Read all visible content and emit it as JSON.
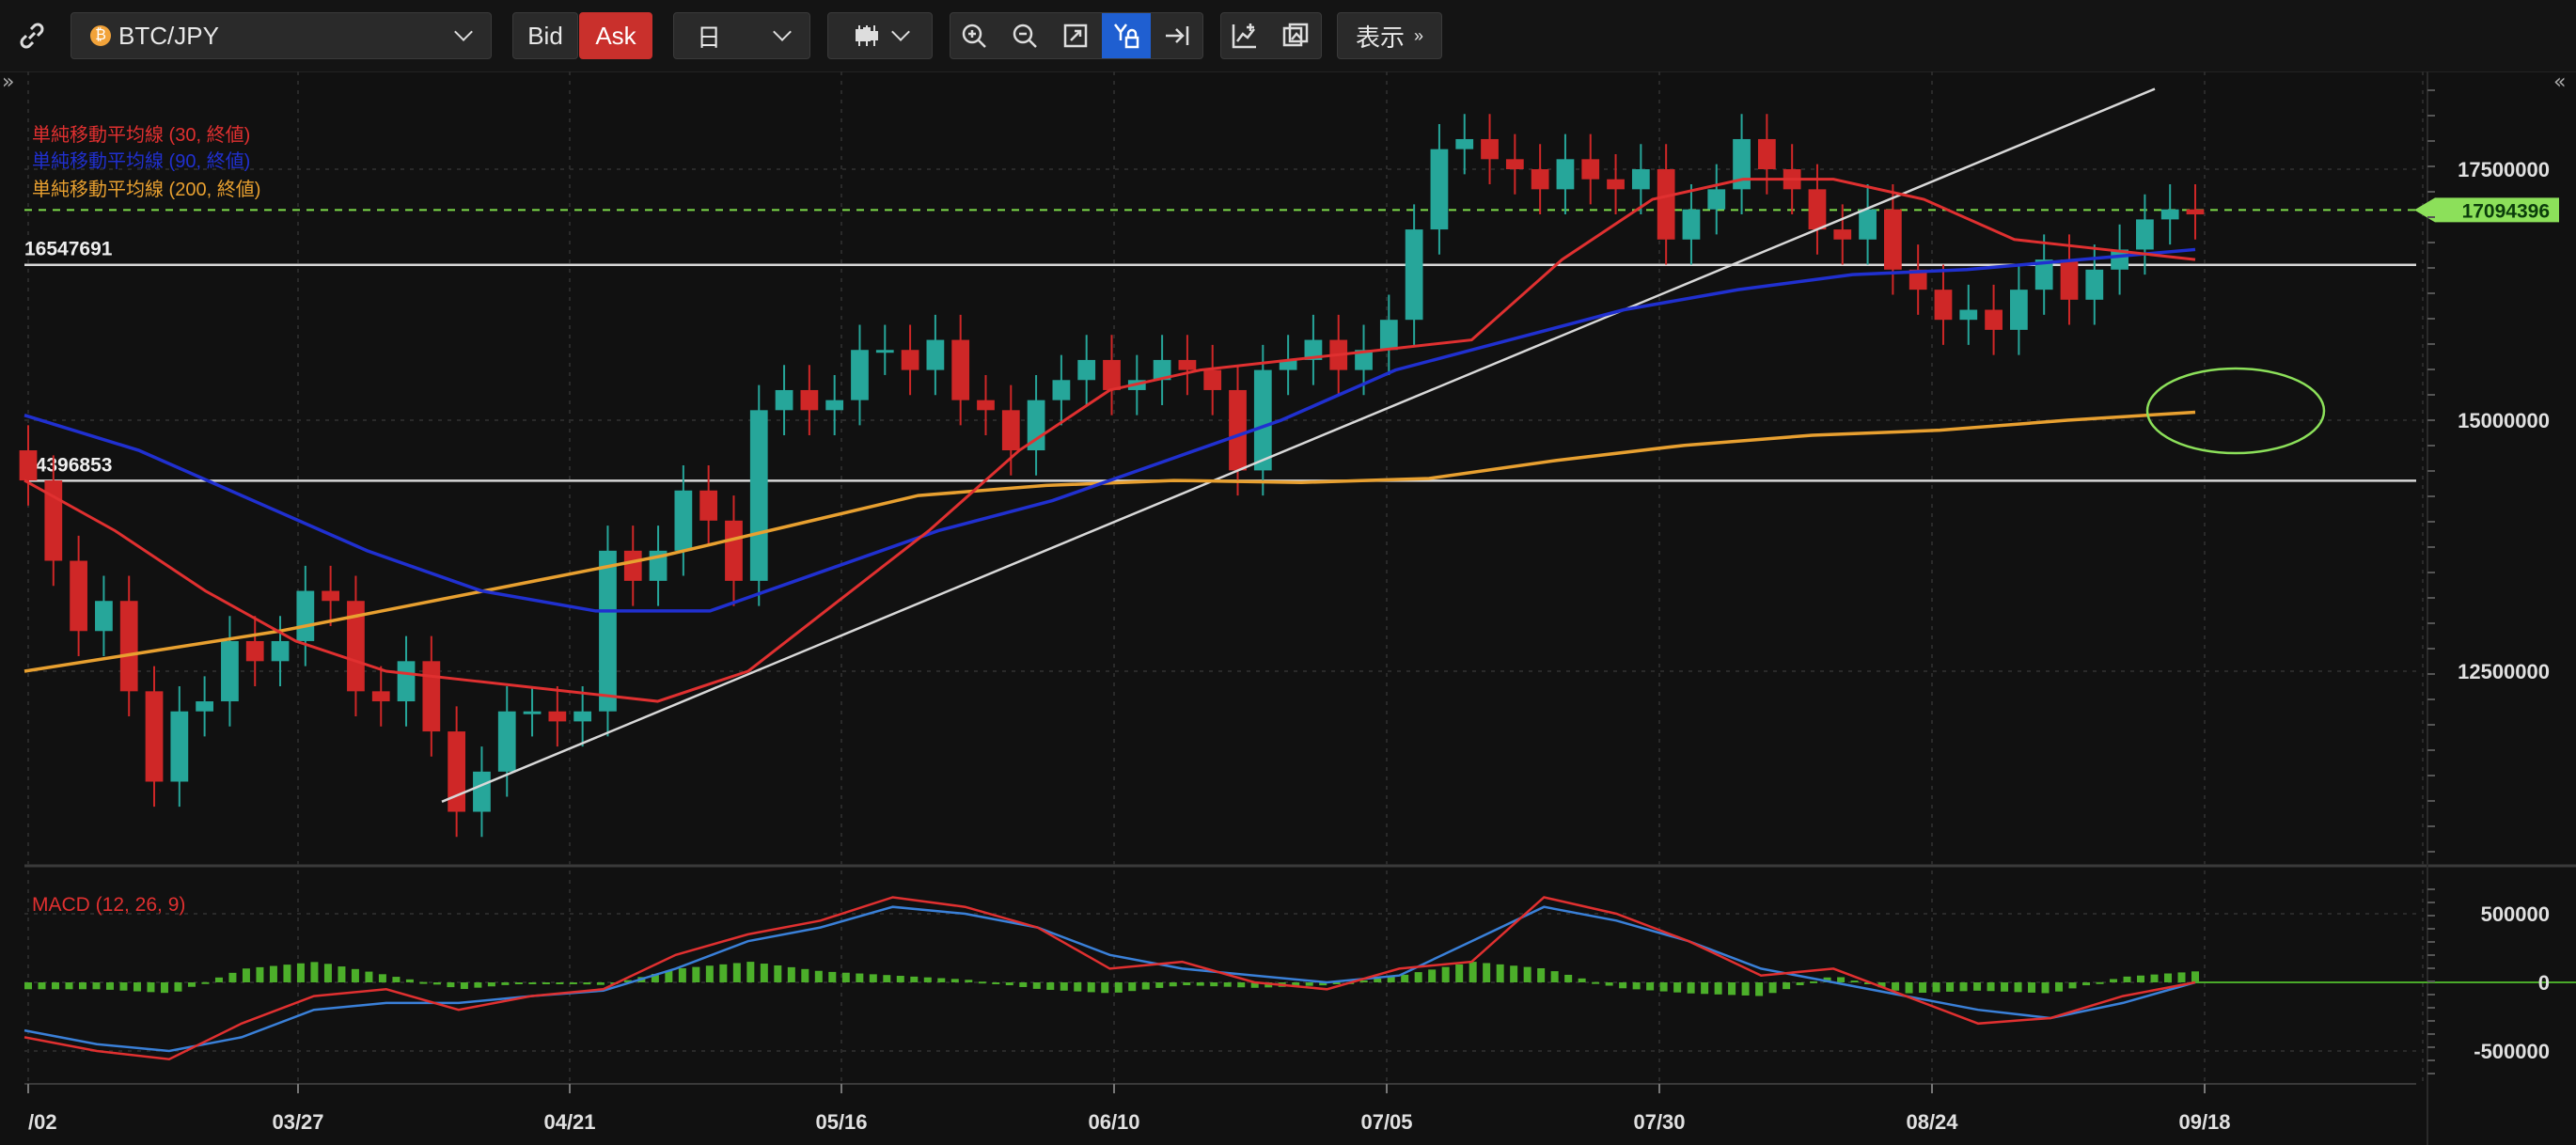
{
  "toolbar": {
    "symbol": "BTC/JPY",
    "bid_label": "Bid",
    "ask_label": "Ask",
    "timeframe": "日",
    "display_label": "表示",
    "colors": {
      "ask_bg": "#c9302c",
      "active_icon_bg": "#1f5fd1"
    }
  },
  "chart_data": [
    {
      "type": "candlestick",
      "title": "",
      "x_tick_labels": [
        "/02",
        "03/27",
        "04/21",
        "05/16",
        "06/10",
        "07/05",
        "07/30",
        "08/24",
        "09/18"
      ],
      "y_tick_labels": [
        "17500000",
        "15000000",
        "12500000"
      ],
      "ylim": [
        10200000,
        18300000
      ],
      "current_price": 17094396,
      "horizontal_lines": [
        {
          "label": "16547691",
          "value": 16547691
        },
        {
          "label": "14396853",
          "value": 14396853
        }
      ],
      "legend": [
        {
          "name": "単純移動平均線 (30, 終値)",
          "color": "#e03030"
        },
        {
          "name": "単純移動平均線 (90, 終値)",
          "color": "#2030d0"
        },
        {
          "name": "単純移動平均線 (200, 終値)",
          "color": "#e8a030"
        }
      ],
      "ohlc_closes_approx": [
        14400000,
        13600000,
        12900000,
        13200000,
        12300000,
        11400000,
        12100000,
        12200000,
        12800000,
        12600000,
        12800000,
        13300000,
        13200000,
        12300000,
        12200000,
        12600000,
        11900000,
        11100000,
        11500000,
        12100000,
        12100000,
        12000000,
        12100000,
        13700000,
        13400000,
        13700000,
        14300000,
        14000000,
        13400000,
        15100000,
        15300000,
        15100000,
        15200000,
        15700000,
        15700000,
        15500000,
        15800000,
        15200000,
        15100000,
        14700000,
        15200000,
        15400000,
        15600000,
        15300000,
        15400000,
        15600000,
        15500000,
        15300000,
        14500000,
        15500000,
        15600000,
        15800000,
        15500000,
        15700000,
        16000000,
        16900000,
        17700000,
        17800000,
        17600000,
        17500000,
        17300000,
        17600000,
        17400000,
        17300000,
        17500000,
        16800000,
        17100000,
        17300000,
        17800000,
        17500000,
        17300000,
        16900000,
        16800000,
        17100000,
        16500000,
        16300000,
        16000000,
        16100000,
        15900000,
        16300000,
        16600000,
        16200000,
        16500000,
        16700000,
        17000000,
        17100000,
        17050000
      ],
      "ma30_approx": [
        14400000,
        13900000,
        13300000,
        12800000,
        12500000,
        12400000,
        12300000,
        12200000,
        12500000,
        13200000,
        13900000,
        14700000,
        15300000,
        15500000,
        15600000,
        15700000,
        15800000,
        16600000,
        17200000,
        17400000,
        17400000,
        17200000,
        16800000,
        16700000,
        16600000
      ],
      "ma90_approx": [
        15050000,
        14700000,
        14200000,
        13700000,
        13300000,
        13100000,
        13100000,
        13500000,
        13900000,
        14200000,
        14600000,
        15000000,
        15500000,
        15800000,
        16100000,
        16300000,
        16450000,
        16500000,
        16600000,
        16700000
      ],
      "ma200_approx": [
        12500000,
        12700000,
        12900000,
        13150000,
        13400000,
        13650000,
        13950000,
        14250000,
        14350000,
        14400000,
        14380000,
        14420000,
        14600000,
        14750000,
        14850000,
        14900000,
        15000000,
        15080000
      ],
      "trendline": {
        "from": [
          11200000
        ],
        "to": [
          18300000
        ]
      }
    },
    {
      "type": "bar+line",
      "title": "MACD (12, 26, 9)",
      "y_tick_labels": [
        "500000",
        "0",
        "-500000"
      ],
      "ylim": [
        -750000,
        750000
      ],
      "macd_approx": [
        -400000,
        -500000,
        -560000,
        -300000,
        -100000,
        -50000,
        -200000,
        -100000,
        -50000,
        200000,
        350000,
        450000,
        620000,
        550000,
        400000,
        100000,
        150000,
        0,
        -50000,
        100000,
        150000,
        620000,
        500000,
        300000,
        50000,
        100000,
        -100000,
        -300000,
        -260000,
        -100000,
        0
      ],
      "signal_approx": [
        -350000,
        -450000,
        -500000,
        -400000,
        -200000,
        -150000,
        -150000,
        -100000,
        -60000,
        100000,
        300000,
        400000,
        550000,
        500000,
        400000,
        200000,
        100000,
        50000,
        0,
        50000,
        300000,
        550000,
        450000,
        300000,
        100000,
        0,
        -100000,
        -200000,
        -260000,
        -150000,
        0
      ],
      "histogram_approx": [
        -50000,
        -50000,
        -80000,
        100000,
        150000,
        50000,
        -50000,
        0,
        -20000,
        100000,
        150000,
        80000,
        50000,
        20000,
        -50000,
        -80000,
        -20000,
        -40000,
        -20000,
        50000,
        150000,
        100000,
        -40000,
        -80000,
        -100000,
        50000,
        -80000,
        -60000,
        -80000,
        40000,
        80000
      ]
    }
  ]
}
